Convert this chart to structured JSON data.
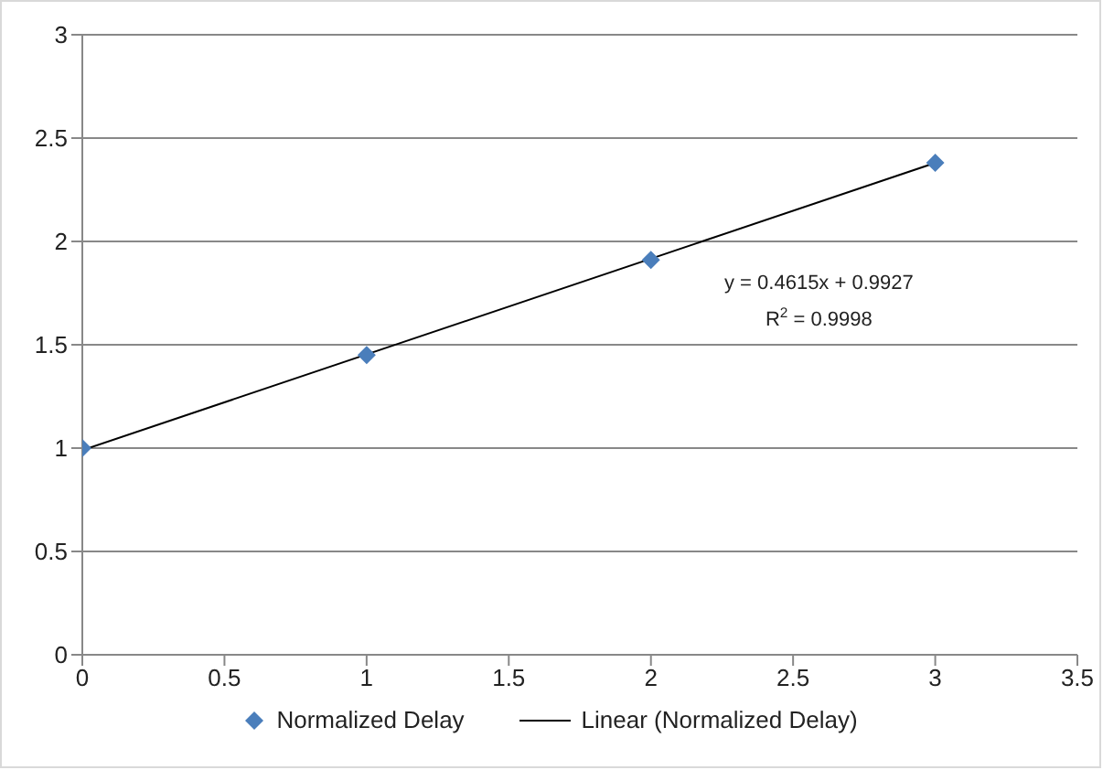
{
  "chart_data": {
    "type": "scatter",
    "series": [
      {
        "name": "Normalized Delay",
        "color": "#4a7ebb",
        "marker": "diamond",
        "x": [
          0,
          1,
          2,
          3
        ],
        "values": [
          1,
          1.45,
          1.91,
          2.38
        ]
      },
      {
        "name": "Linear (Normalized Delay)",
        "type": "line",
        "color": "#000000",
        "marker": "none",
        "x": [
          0,
          3
        ],
        "values": [
          0.99,
          2.38
        ]
      }
    ],
    "xlim": [
      0,
      3.5
    ],
    "xticks": [
      0,
      0.5,
      1,
      1.5,
      2,
      2.5,
      3,
      3.5
    ],
    "ylim": [
      0,
      3
    ],
    "yticks": [
      0,
      0.5,
      1,
      1.5,
      2,
      2.5,
      3
    ],
    "grid": "y",
    "legend": "bottom",
    "annotations": [
      "y = 0.4615x + 0.9927",
      "R$^{2}$ = 0.9998"
    ]
  }
}
